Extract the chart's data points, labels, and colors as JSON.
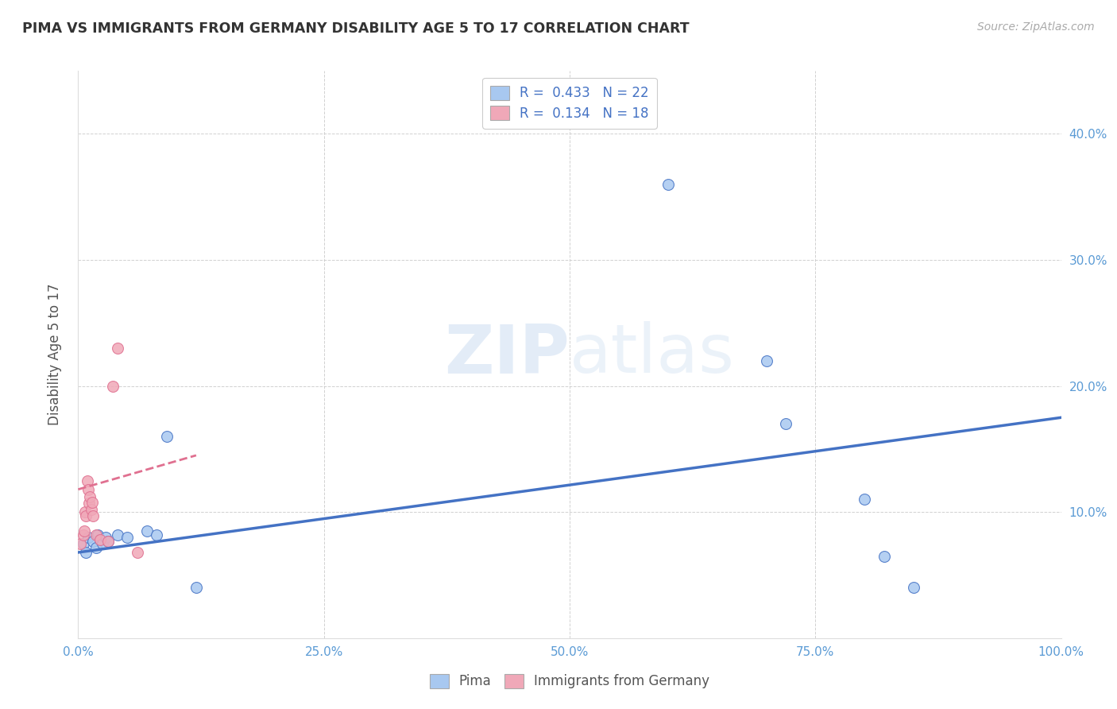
{
  "title": "PIMA VS IMMIGRANTS FROM GERMANY DISABILITY AGE 5 TO 17 CORRELATION CHART",
  "source_text": "Source: ZipAtlas.com",
  "xlabel": "",
  "ylabel": "Disability Age 5 to 17",
  "legend_label1": "Pima",
  "legend_label2": "Immigrants from Germany",
  "R1": 0.433,
  "N1": 22,
  "R2": 0.134,
  "N2": 18,
  "xlim": [
    0.0,
    1.0
  ],
  "ylim": [
    0.0,
    0.45
  ],
  "xticks": [
    0.0,
    0.25,
    0.5,
    0.75,
    1.0
  ],
  "xtick_labels": [
    "0.0%",
    "25.0%",
    "50.0%",
    "75.0%",
    "100.0%"
  ],
  "yticks": [
    0.0,
    0.1,
    0.2,
    0.3,
    0.4
  ],
  "ytick_labels": [
    "",
    "10.0%",
    "20.0%",
    "30.0%",
    "40.0%"
  ],
  "color_blue": "#a8c8f0",
  "color_pink": "#f0a8b8",
  "line_blue": "#4472c4",
  "line_pink": "#e07090",
  "watermark_part1": "ZIP",
  "watermark_part2": "atlas",
  "blue_points": [
    [
      0.005,
      0.075
    ],
    [
      0.008,
      0.068
    ],
    [
      0.01,
      0.08
    ],
    [
      0.015,
      0.077
    ],
    [
      0.018,
      0.072
    ],
    [
      0.02,
      0.082
    ],
    [
      0.022,
      0.078
    ],
    [
      0.025,
      0.075
    ],
    [
      0.028,
      0.08
    ],
    [
      0.03,
      0.077
    ],
    [
      0.04,
      0.082
    ],
    [
      0.05,
      0.08
    ],
    [
      0.07,
      0.085
    ],
    [
      0.08,
      0.082
    ],
    [
      0.09,
      0.16
    ],
    [
      0.12,
      0.04
    ],
    [
      0.6,
      0.36
    ],
    [
      0.7,
      0.22
    ],
    [
      0.72,
      0.17
    ],
    [
      0.8,
      0.11
    ],
    [
      0.82,
      0.065
    ],
    [
      0.85,
      0.04
    ]
  ],
  "pink_points": [
    [
      0.002,
      0.075
    ],
    [
      0.005,
      0.082
    ],
    [
      0.006,
      0.085
    ],
    [
      0.007,
      0.1
    ],
    [
      0.008,
      0.097
    ],
    [
      0.009,
      0.125
    ],
    [
      0.01,
      0.118
    ],
    [
      0.011,
      0.107
    ],
    [
      0.012,
      0.112
    ],
    [
      0.013,
      0.102
    ],
    [
      0.014,
      0.108
    ],
    [
      0.015,
      0.097
    ],
    [
      0.018,
      0.082
    ],
    [
      0.022,
      0.078
    ],
    [
      0.03,
      0.077
    ],
    [
      0.06,
      0.068
    ],
    [
      0.04,
      0.23
    ],
    [
      0.035,
      0.2
    ]
  ],
  "blue_line_x": [
    0.0,
    1.0
  ],
  "blue_line_y": [
    0.068,
    0.175
  ],
  "pink_line_x": [
    0.0,
    0.12
  ],
  "pink_line_y": [
    0.118,
    0.145
  ],
  "background_color": "#ffffff",
  "grid_color": "#cccccc",
  "title_color": "#333333",
  "axis_label_color": "#555555",
  "tick_label_color": "#5b9bd5",
  "legend_R_color": "#4472c4"
}
